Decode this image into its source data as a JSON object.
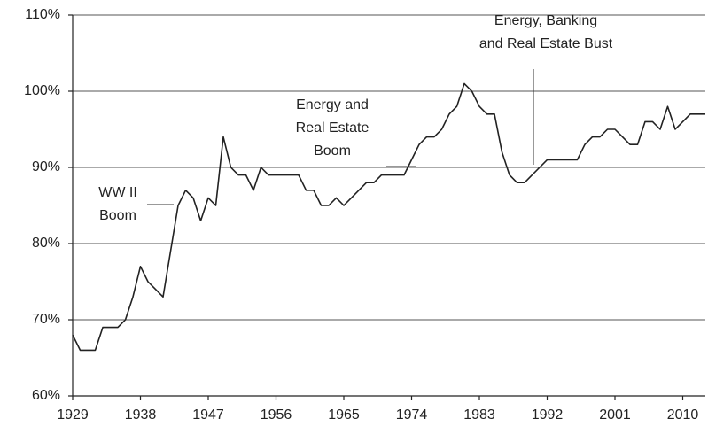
{
  "chart_data": {
    "type": "line",
    "x": [
      1929,
      1930,
      1931,
      1932,
      1933,
      1934,
      1935,
      1936,
      1937,
      1938,
      1939,
      1940,
      1941,
      1942,
      1943,
      1944,
      1945,
      1946,
      1947,
      1948,
      1949,
      1950,
      1951,
      1952,
      1953,
      1954,
      1955,
      1956,
      1957,
      1958,
      1959,
      1960,
      1961,
      1962,
      1963,
      1964,
      1965,
      1966,
      1967,
      1968,
      1969,
      1970,
      1971,
      1972,
      1973,
      1974,
      1975,
      1976,
      1977,
      1978,
      1979,
      1980,
      1981,
      1982,
      1983,
      1984,
      1985,
      1986,
      1987,
      1988,
      1989,
      1990,
      1991,
      1992,
      1993,
      1994,
      1995,
      1996,
      1997,
      1998,
      1999,
      2000,
      2001,
      2002,
      2003,
      2004,
      2005,
      2006,
      2007,
      2008,
      2009,
      2010,
      2011,
      2012,
      2013
    ],
    "series": [
      {
        "color": "#222222",
        "values": [
          68,
          66,
          66,
          66,
          69,
          69,
          69,
          70,
          73,
          77,
          75,
          74,
          73,
          79,
          85,
          87,
          86,
          83,
          86,
          85,
          94,
          90,
          89,
          89,
          87,
          90,
          89,
          89,
          89,
          89,
          89,
          87,
          87,
          85,
          85,
          86,
          85,
          86,
          87,
          88,
          88,
          89,
          89,
          89,
          89,
          91,
          93,
          94,
          94,
          95,
          97,
          98,
          101,
          100,
          98,
          97,
          97,
          92,
          89,
          88,
          88,
          89,
          90,
          91,
          91,
          91,
          91,
          91,
          93,
          94,
          94,
          95,
          95,
          94,
          93,
          93,
          96,
          96,
          95,
          98,
          95,
          96,
          97,
          97,
          97
        ]
      }
    ],
    "xlim": [
      1929,
      2013
    ],
    "xticks": [
      1929,
      1938,
      1947,
      1956,
      1965,
      1974,
      1983,
      1992,
      2001,
      2010
    ],
    "ylim": [
      60,
      110
    ],
    "yticks": [
      {
        "value": 60,
        "label": "60%"
      },
      {
        "value": 70,
        "label": "70%"
      },
      {
        "value": 80,
        "label": "80%"
      },
      {
        "value": 90,
        "label": "90%"
      },
      {
        "value": 100,
        "label": "100%"
      },
      {
        "value": 110,
        "label": "110%"
      }
    ],
    "grid": true,
    "annotations": [
      {
        "lines": [
          "WW II",
          "Boom"
        ]
      },
      {
        "lines": [
          "Energy and",
          "Real Estate",
          "Boom"
        ]
      },
      {
        "lines": [
          "Energy, Banking",
          "and Real Estate Bust"
        ]
      }
    ]
  }
}
